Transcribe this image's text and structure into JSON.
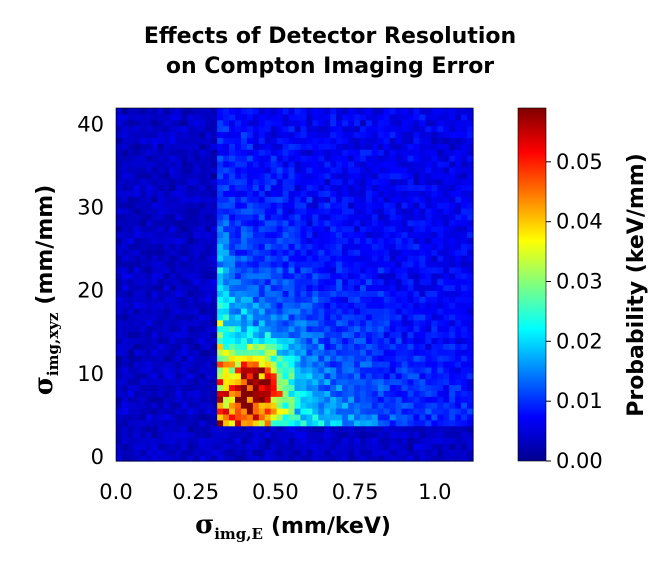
{
  "chart_data": {
    "type": "heatmap",
    "title_line1": "Effects of Detector Resolution",
    "title_line2": "on Compton Imaging Error",
    "xlabel": {
      "symbol": "σ",
      "sub": "img,E",
      "unit": "(mm/keV)"
    },
    "ylabel": {
      "symbol": "σ",
      "sub": "img,xyz",
      "unit": "(mm/mm)"
    },
    "x_ticks": [
      "0.0",
      "0.25",
      "0.50",
      "0.75",
      "1.0"
    ],
    "x_tick_values": [
      0.0,
      0.25,
      0.5,
      0.75,
      1.0
    ],
    "y_ticks": [
      "0",
      "10",
      "20",
      "30",
      "40"
    ],
    "y_tick_values": [
      0,
      10,
      20,
      30,
      40
    ],
    "xlim": [
      0.0,
      1.12
    ],
    "ylim": [
      -0.5,
      42
    ],
    "grid": false,
    "colormap": "jet",
    "colorbar": {
      "label": "Probability (keV/mm)",
      "min": 0.0,
      "max": 0.059,
      "ticks": [
        "0.00",
        "0.01",
        "0.02",
        "0.03",
        "0.04",
        "0.05"
      ],
      "tick_values": [
        0.0,
        0.01,
        0.02,
        0.03,
        0.04,
        0.05
      ]
    },
    "bins": {
      "nx": 60,
      "ny": 60
    },
    "distribution": {
      "x_threshold": 0.31,
      "y_threshold": 3.5,
      "peak_x": 0.44,
      "peak_y": 8.5,
      "peak_value": 0.058,
      "background_value": 0.004
    }
  }
}
